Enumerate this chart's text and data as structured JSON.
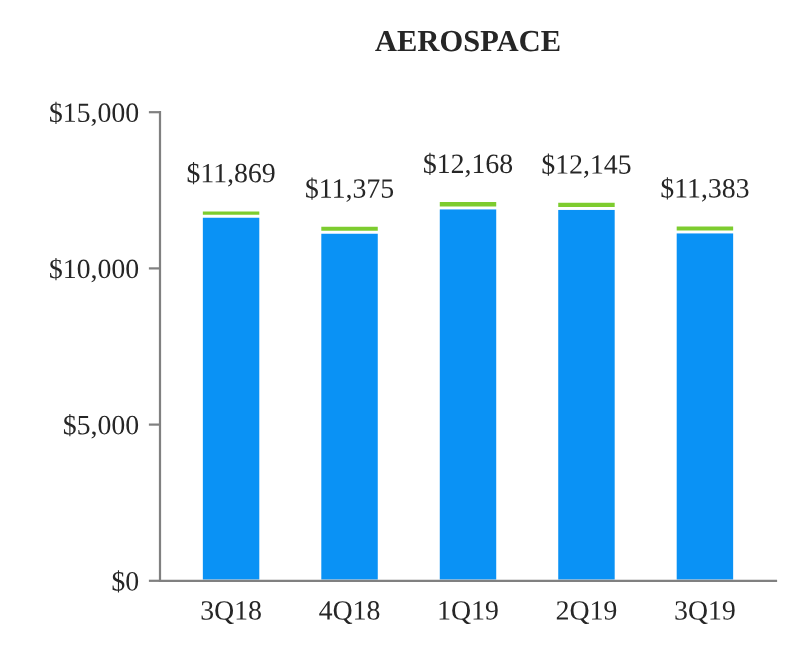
{
  "chart_data": {
    "type": "bar",
    "title": "AEROSPACE",
    "stacked": true,
    "categories": [
      "3Q18",
      "4Q18",
      "1Q19",
      "2Q19",
      "3Q19"
    ],
    "series": [
      {
        "color": "#0a92f5",
        "values": [
          11670,
          11160,
          11940,
          11920,
          11170
        ]
      },
      {
        "color": "#7dcc2f",
        "values": [
          199,
          215,
          228,
          225,
          213
        ]
      }
    ],
    "totals": [
      "$11,869",
      "$11,375",
      "$12,168",
      "$12,145",
      "$11,383"
    ],
    "ylim": [
      0,
      15000
    ],
    "yticks": [
      {
        "value": 0,
        "label": "$0"
      },
      {
        "value": 5000,
        "label": "$5,000"
      },
      {
        "value": 10000,
        "label": "$10,000"
      },
      {
        "value": 15000,
        "label": "$15,000"
      }
    ],
    "grid": false,
    "legend": false
  }
}
